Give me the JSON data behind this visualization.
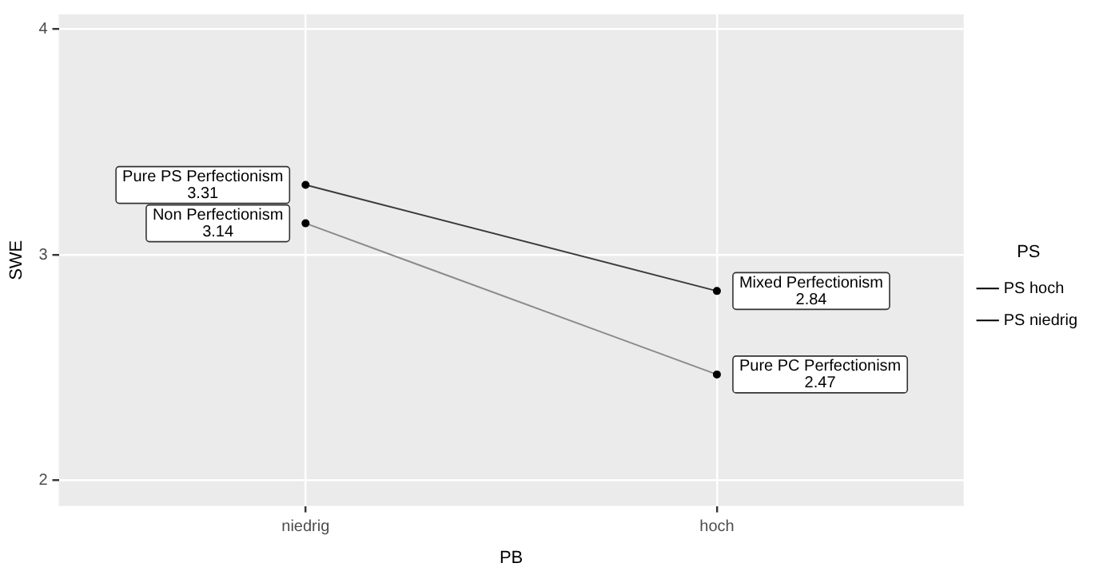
{
  "chart_data": {
    "type": "line",
    "xlabel": "PB",
    "ylabel": "SWE",
    "legend_title": "PS",
    "categories": [
      "niedrig",
      "hoch"
    ],
    "series": [
      {
        "name": "PS hoch",
        "color": "#3a3a3a",
        "values": [
          3.31,
          2.84
        ]
      },
      {
        "name": "PS niedrig",
        "color": "#8a8a8a",
        "values": [
          3.14,
          2.47
        ]
      }
    ],
    "annotations": [
      {
        "text": "Pure PS Perfectionism\n3.31",
        "x": "niedrig",
        "y": 3.31
      },
      {
        "text": "Mixed Perfectionism\n2.84",
        "x": "hoch",
        "y": 2.84
      },
      {
        "text": "Non Perfectionism\n3.14",
        "x": "niedrig",
        "y": 3.14
      },
      {
        "text": "Pure PC Perfectionism\n2.47",
        "x": "hoch",
        "y": 2.47
      }
    ],
    "ylim": [
      1.887,
      4.066
    ],
    "yticks": [
      2,
      3,
      4
    ],
    "grid": true,
    "legend": "right",
    "marker": "circle",
    "line_style": "solid"
  }
}
